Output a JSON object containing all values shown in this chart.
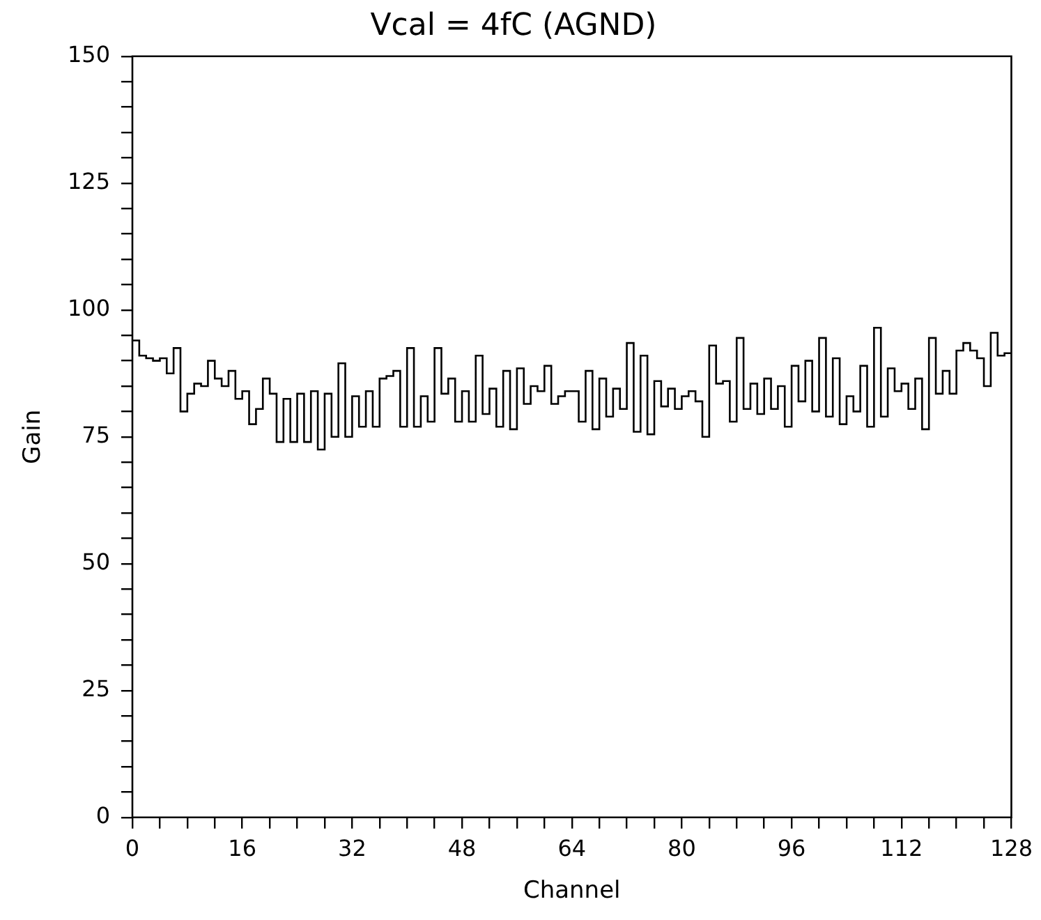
{
  "chart_data": {
    "type": "histogram",
    "title": "Vcal = 4fC (AGND)",
    "xlabel": "Channel",
    "ylabel": "Gain",
    "bins": [
      0,
      1,
      2,
      3,
      4,
      5,
      6,
      7,
      8,
      9,
      10,
      11,
      12,
      13,
      14,
      15,
      16,
      17,
      18,
      19,
      20,
      21,
      22,
      23,
      24,
      25,
      26,
      27,
      28,
      29,
      30,
      31,
      32,
      33,
      34,
      35,
      36,
      37,
      38,
      39,
      40,
      41,
      42,
      43,
      44,
      45,
      46,
      47,
      48,
      49,
      50,
      51,
      52,
      53,
      54,
      55,
      56,
      57,
      58,
      59,
      60,
      61,
      62,
      63,
      64,
      65,
      66,
      67,
      68,
      69,
      70,
      71,
      72,
      73,
      74,
      75,
      76,
      77,
      78,
      79,
      80,
      81,
      82,
      83,
      84,
      85,
      86,
      87,
      88,
      89,
      90,
      91,
      92,
      93,
      94,
      95,
      96,
      97,
      98,
      99,
      100,
      101,
      102,
      103,
      104,
      105,
      106,
      107,
      108,
      109,
      110,
      111,
      112,
      113,
      114,
      115,
      116,
      117,
      118,
      119,
      120,
      121,
      122,
      123,
      124,
      125,
      126,
      127,
      128
    ],
    "values": [
      94,
      91,
      90.5,
      90,
      90.5,
      87.5,
      92.5,
      80,
      83.5,
      85.5,
      85,
      90,
      86.5,
      85,
      88,
      82.5,
      84,
      77.5,
      80.5,
      86.5,
      83.5,
      74,
      82.5,
      74,
      83.5,
      74,
      84,
      72.5,
      83.5,
      75,
      89.5,
      75,
      83,
      77,
      84,
      77,
      86.5,
      87,
      88,
      77,
      92.5,
      77,
      83,
      78,
      92.5,
      83.5,
      86.5,
      78,
      84,
      78,
      91,
      79.5,
      84.5,
      77,
      88,
      76.5,
      88.5,
      81.5,
      85,
      84,
      89,
      81.5,
      83,
      84,
      84,
      78,
      88,
      76.5,
      86.5,
      79,
      84.5,
      80.5,
      93.5,
      76,
      91,
      75.5,
      86,
      81,
      84.5,
      80.5,
      83,
      84,
      82,
      75,
      93,
      85.5,
      86,
      78,
      94.5,
      80.5,
      85.5,
      79.5,
      86.5,
      80.5,
      85,
      77,
      89,
      82,
      90,
      80,
      94.5,
      79,
      90.5,
      77.5,
      83,
      80,
      89,
      77,
      96.5,
      79,
      88.5,
      84,
      85.5,
      80.5,
      86.5,
      76.5,
      94.5,
      83.5,
      88,
      83.5,
      92,
      93.5,
      92,
      90.5,
      85,
      95.5,
      91,
      91.5
    ],
    "color": "#000000",
    "xlim": [
      0,
      128
    ],
    "xticks": [
      0,
      {
        "value": 4,
        "label": null
      },
      {
        "value": 8,
        "label": null
      },
      {
        "value": 12,
        "label": null
      },
      16,
      {
        "value": 20,
        "label": null
      },
      {
        "value": 24,
        "label": null
      },
      {
        "value": 28,
        "label": null
      },
      32,
      {
        "value": 36,
        "label": null
      },
      {
        "value": 40,
        "label": null
      },
      {
        "value": 44,
        "label": null
      },
      48,
      {
        "value": 52,
        "label": null
      },
      {
        "value": 56,
        "label": null
      },
      {
        "value": 60,
        "label": null
      },
      64,
      {
        "value": 68,
        "label": null
      },
      {
        "value": 72,
        "label": null
      },
      {
        "value": 76,
        "label": null
      },
      80,
      {
        "value": 84,
        "label": null
      },
      {
        "value": 88,
        "label": null
      },
      {
        "value": 92,
        "label": null
      },
      96,
      {
        "value": 100,
        "label": null
      },
      {
        "value": 104,
        "label": null
      },
      {
        "value": 108,
        "label": null
      },
      112,
      {
        "value": 116,
        "label": null
      },
      {
        "value": 120,
        "label": null
      },
      {
        "value": 124,
        "label": null
      },
      128
    ],
    "ylim": [
      0,
      150
    ],
    "yticks": [
      0,
      {
        "value": 5,
        "label": null
      },
      {
        "value": 10,
        "label": null
      },
      {
        "value": 15,
        "label": null
      },
      {
        "value": 20,
        "label": null
      },
      25,
      {
        "value": 30,
        "label": null
      },
      {
        "value": 35,
        "label": null
      },
      {
        "value": 40,
        "label": null
      },
      {
        "value": 45,
        "label": null
      },
      50,
      {
        "value": 55,
        "label": null
      },
      {
        "value": 60,
        "label": null
      },
      {
        "value": 65,
        "label": null
      },
      {
        "value": 70,
        "label": null
      },
      75,
      {
        "value": 80,
        "label": null
      },
      {
        "value": 85,
        "label": null
      },
      {
        "value": 90,
        "label": null
      },
      {
        "value": 95,
        "label": null
      },
      100,
      {
        "value": 105,
        "label": null
      },
      {
        "value": 110,
        "label": null
      },
      {
        "value": 115,
        "label": null
      },
      {
        "value": 120,
        "label": null
      },
      125,
      {
        "value": 130,
        "label": null
      },
      {
        "value": 135,
        "label": null
      },
      {
        "value": 140,
        "label": null
      },
      {
        "value": 145,
        "label": null
      },
      150
    ],
    "grid": false
  }
}
